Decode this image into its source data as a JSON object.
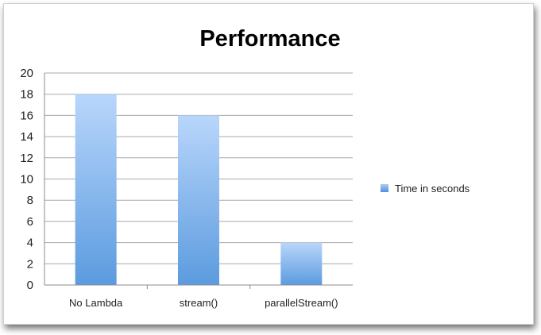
{
  "chart_data": {
    "type": "bar",
    "title": "Performance",
    "categories": [
      "No Lambda",
      "stream()",
      "parallelStream()"
    ],
    "series": [
      {
        "name": "Time in seconds",
        "values": [
          18,
          16,
          4
        ],
        "color": "#5b9bdf"
      }
    ],
    "ylim": [
      0,
      20
    ],
    "yticks": [
      0,
      2,
      4,
      6,
      8,
      10,
      12,
      14,
      16,
      18,
      20
    ],
    "grid": true,
    "legend_position": "right"
  }
}
